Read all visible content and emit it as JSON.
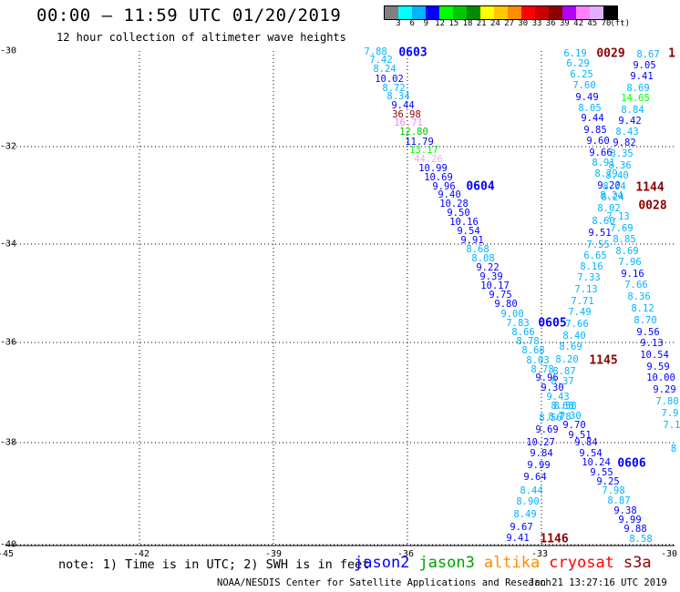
{
  "header": {
    "title": "00:00 – 11:59 UTC 01/20/2019",
    "subtitle": "12 hour collection of altimeter wave heights"
  },
  "color_scale": {
    "colors": [
      "#808080",
      "#00ffff",
      "#00b4ff",
      "#0000ff",
      "#00ff00",
      "#00c800",
      "#008c00",
      "#ffff00",
      "#ffc800",
      "#ff8c00",
      "#ff0000",
      "#c80000",
      "#8c0000",
      "#b400ff",
      "#ff80ff",
      "#e0b0ff",
      "#000000"
    ],
    "labels": [
      "3",
      "6",
      "9",
      "12",
      "15",
      "18",
      "21",
      "24",
      "27",
      "30",
      "33",
      "36",
      "39",
      "42",
      "45",
      "70",
      "(ft)"
    ]
  },
  "map": {
    "lat_labels": [
      "-30",
      "-32",
      "-34",
      "-36",
      "-38",
      "-40"
    ],
    "lon_labels": [
      "-45",
      "-42",
      "-39",
      "-36",
      "-33",
      "-30"
    ],
    "passes": [
      {
        "label": "0603",
        "color": "#0000ff"
      },
      {
        "label": "0604",
        "color": "#0000ff"
      },
      {
        "label": "0605",
        "color": "#0000ff"
      },
      {
        "label": "0606",
        "color": "#0000ff"
      },
      {
        "label": "0029",
        "color": "#8c0000"
      },
      {
        "label": "1144",
        "color": "#8c0000"
      },
      {
        "label": "0028",
        "color": "#8c0000"
      },
      {
        "label": "1145",
        "color": "#8c0000"
      },
      {
        "label": "1146",
        "color": "#8c0000"
      },
      {
        "label": "1",
        "color": "#8c0000"
      }
    ],
    "track_a": [
      "7.88",
      "7.42",
      "8.24",
      "10.02",
      "8.72",
      "8.34",
      "9.44",
      "36.98",
      "16.71",
      "12.80",
      "11.79",
      "13.17",
      "44.26",
      "10.99",
      "10.69",
      "9.96",
      "9.40",
      "10.28",
      "9.50",
      "10.16",
      "9.54",
      "9.91",
      "8.68",
      "8.08",
      "9.22",
      "9.39",
      "10.17",
      "9.75",
      "9.80",
      "9.00",
      "7.83",
      "8.66",
      "8.78",
      "8.68",
      "8.03",
      "8.78",
      "9.96",
      "9.30",
      "9.43",
      "8.68",
      "8.78",
      "8.56",
      "9.69",
      "10.27",
      "9.84",
      "9.99",
      "9.64",
      "8.44",
      "8.90",
      "8.49",
      "9.67",
      "9.41"
    ],
    "track_a_colors": [
      "#00b4ff",
      "#00b4ff",
      "#00b4ff",
      "#0000ff",
      "#00b4ff",
      "#00b4ff",
      "#0000ff",
      "#8c0000",
      "#ff80ff",
      "#00c800",
      "#0000ff",
      "#00ff00",
      "#e0b0ff",
      "#0000ff",
      "#0000ff",
      "#0000ff",
      "#0000ff",
      "#0000ff",
      "#0000ff",
      "#0000ff",
      "#0000ff",
      "#0000ff",
      "#00b4ff",
      "#00b4ff",
      "#0000ff",
      "#0000ff",
      "#0000ff",
      "#0000ff",
      "#0000ff",
      "#00b4ff",
      "#00b4ff",
      "#00b4ff",
      "#00b4ff",
      "#00b4ff",
      "#00b4ff",
      "#00b4ff",
      "#0000ff",
      "#0000ff",
      "#00b4ff",
      "#00b4ff",
      "#00b4ff",
      "#00b4ff",
      "#0000ff",
      "#0000ff",
      "#0000ff",
      "#0000ff",
      "#0000ff",
      "#00b4ff",
      "#00b4ff",
      "#00b4ff",
      "#0000ff",
      "#0000ff"
    ],
    "track_b": [
      "6.19",
      "6.29",
      "6.25",
      "7.60",
      "9.49",
      "8.05",
      "9.44",
      "9.85",
      "9.60",
      "9.66",
      "8.91",
      "8.79",
      "9.20",
      "8.24",
      "8.02",
      "8.60",
      "9.51",
      "7.55",
      "6.65",
      "8.16",
      "7.33",
      "7.13",
      "7.71",
      "7.49",
      "7.66",
      "8.40",
      "8.69",
      "8.20",
      "8.87",
      "8.37",
      "8.58",
      "7.30",
      "9.70",
      "9.51",
      "9.84",
      "9.54",
      "10.24",
      "9.55",
      "9.25",
      "7.98",
      "8.87",
      "9.38",
      "9.99",
      "9.88",
      "8.58"
    ],
    "track_b_colors": [
      "#00b4ff",
      "#00b4ff",
      "#00b4ff",
      "#00b4ff",
      "#0000ff",
      "#00b4ff",
      "#0000ff",
      "#0000ff",
      "#0000ff",
      "#0000ff",
      "#00b4ff",
      "#00b4ff",
      "#0000ff",
      "#00b4ff",
      "#00b4ff",
      "#00b4ff",
      "#0000ff",
      "#00b4ff",
      "#00b4ff",
      "#00b4ff",
      "#00b4ff",
      "#00b4ff",
      "#00b4ff",
      "#00b4ff",
      "#00b4ff",
      "#00b4ff",
      "#00b4ff",
      "#00b4ff",
      "#00b4ff",
      "#00b4ff",
      "#00b4ff",
      "#00b4ff",
      "#0000ff",
      "#0000ff",
      "#0000ff",
      "#0000ff",
      "#0000ff",
      "#0000ff",
      "#0000ff",
      "#00b4ff",
      "#00b4ff",
      "#0000ff",
      "#0000ff",
      "#0000ff",
      "#00b4ff"
    ],
    "track_c": [
      "8.67",
      "9.05",
      "9.41",
      "8.69",
      "14.65",
      "8.84",
      "9.42",
      "8.43",
      "9.82",
      "8.35",
      "8.36",
      "8.40",
      "8.04",
      "8.24",
      "7.13",
      "7.69",
      "8.85",
      "8.69",
      "7.96",
      "9.16",
      "7.66",
      "8.36",
      "8.12",
      "8.70",
      "9.56",
      "9.13",
      "10.54",
      "9.59",
      "10.00",
      "9.29",
      "7.80",
      "7.9",
      "7.1",
      "8"
    ],
    "track_c_colors": [
      "#00b4ff",
      "#0000ff",
      "#0000ff",
      "#00b4ff",
      "#00ff00",
      "#00b4ff",
      "#0000ff",
      "#00b4ff",
      "#0000ff",
      "#00b4ff",
      "#00b4ff",
      "#00b4ff",
      "#00b4ff",
      "#00b4ff",
      "#00b4ff",
      "#00b4ff",
      "#00b4ff",
      "#00b4ff",
      "#00b4ff",
      "#0000ff",
      "#00b4ff",
      "#00b4ff",
      "#00b4ff",
      "#00b4ff",
      "#0000ff",
      "#0000ff",
      "#0000ff",
      "#0000ff",
      "#0000ff",
      "#0000ff",
      "#00b4ff",
      "#00b4ff",
      "#00b4ff",
      "#00b4ff"
    ]
  },
  "footer": {
    "note": "note: 1) Time is in UTC; 2) SWH is in feet",
    "legend": [
      {
        "name": "jason2",
        "color": "#0000ff"
      },
      {
        "name": "jason3",
        "color": "#00a000"
      },
      {
        "name": "altika",
        "color": "#ff8c00"
      },
      {
        "name": "cryosat",
        "color": "#ff0000"
      },
      {
        "name": "s3a",
        "color": "#8c0000"
      }
    ],
    "credit": "NOAA/NESDIS Center for Satellite Applications and Research",
    "timestamp": "Jan 21 13:27:16 UTC 2019"
  }
}
